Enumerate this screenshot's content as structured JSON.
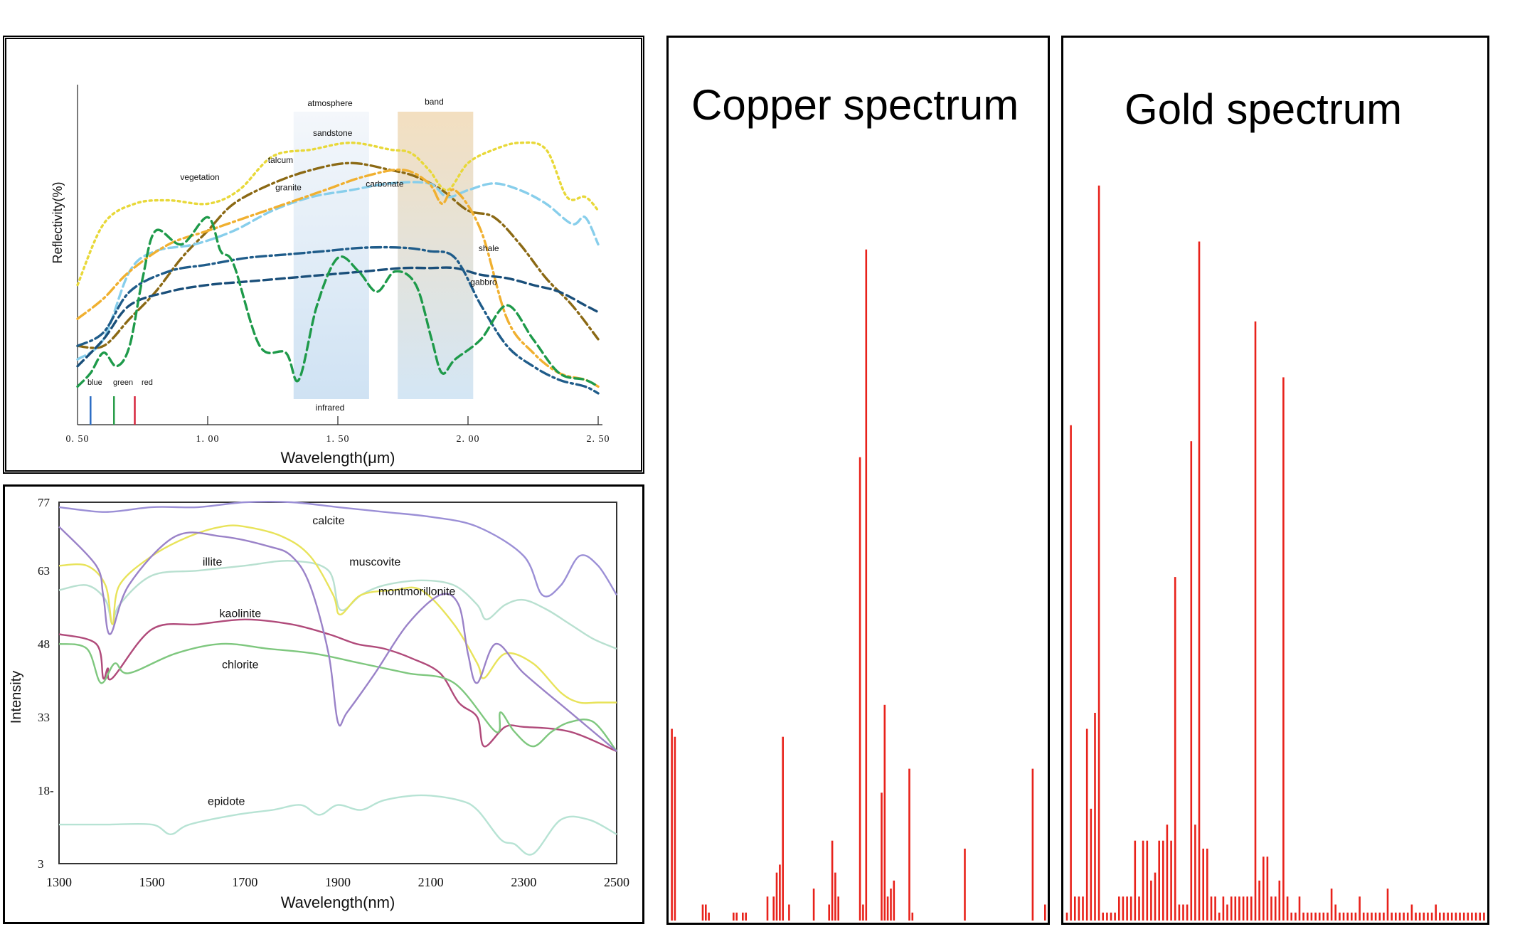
{
  "chart_data": [
    {
      "type": "line",
      "xlabel": "Wavelength(μm)",
      "ylabel": "Reflectivity(%)",
      "xlim": [
        0.5,
        2.5
      ],
      "xticks": [
        "0. 50",
        "1. 00",
        "1. 50",
        "2. 00",
        "2. 50"
      ],
      "shaded_bands": [
        {
          "label_top": "atmosphere",
          "label_bottom": "infrared",
          "x": [
            1.33,
            1.62
          ],
          "color": "#cfe2f3"
        },
        {
          "label_top": "band",
          "x": [
            1.73,
            2.02
          ],
          "color": "#f3dfc0"
        }
      ],
      "visible_markers": [
        {
          "label": "blue",
          "x": 0.55,
          "color": "#2b6cc4"
        },
        {
          "label": "green",
          "x": 0.64,
          "color": "#2a9d4a"
        },
        {
          "label": "red",
          "x": 0.72,
          "color": "#d7263d"
        }
      ],
      "series": [
        {
          "name": "sandstone",
          "color": "#e8d838",
          "style": "dotted",
          "x": [
            0.5,
            0.6,
            0.72,
            0.85,
            1.0,
            1.12,
            1.25,
            1.4,
            1.55,
            1.7,
            1.78,
            1.85,
            1.92,
            2.0,
            2.1,
            2.2,
            2.3,
            2.38,
            2.45,
            2.5
          ],
          "y": [
            40,
            58,
            64,
            65,
            64,
            68,
            78,
            80,
            82,
            80,
            79,
            74,
            68,
            76,
            80,
            82,
            80,
            66,
            66,
            62
          ]
        },
        {
          "name": "talcum",
          "color": "#8b6914",
          "style": "dashdot",
          "x": [
            0.5,
            0.6,
            0.7,
            0.8,
            0.9,
            1.0,
            1.1,
            1.25,
            1.4,
            1.55,
            1.7,
            1.8,
            1.9,
            2.0,
            2.1,
            2.2,
            2.3,
            2.4,
            2.5
          ],
          "y": [
            22,
            22,
            30,
            38,
            48,
            56,
            64,
            70,
            74,
            76,
            74,
            72,
            68,
            62,
            60,
            52,
            42,
            34,
            24
          ]
        },
        {
          "name": "granite",
          "color": "#87ceeb",
          "style": "dashed",
          "x": [
            0.5,
            0.6,
            0.7,
            0.8,
            0.95,
            1.1,
            1.25,
            1.4,
            1.55,
            1.7,
            1.85,
            1.92,
            2.0,
            2.1,
            2.2,
            2.3,
            2.4,
            2.45,
            2.5
          ],
          "y": [
            18,
            24,
            44,
            50,
            52,
            56,
            62,
            66,
            68,
            70,
            70,
            66,
            68,
            70,
            68,
            64,
            58,
            60,
            52
          ]
        },
        {
          "name": "carbonate",
          "color": "#f0b030",
          "style": "dashdot",
          "x": [
            0.5,
            0.6,
            0.7,
            0.85,
            1.0,
            1.15,
            1.3,
            1.45,
            1.6,
            1.75,
            1.85,
            1.9,
            1.95,
            2.05,
            2.15,
            2.25,
            2.35,
            2.45,
            2.5
          ],
          "y": [
            30,
            36,
            44,
            52,
            56,
            60,
            64,
            68,
            72,
            74,
            70,
            64,
            68,
            56,
            30,
            20,
            14,
            12,
            10
          ]
        },
        {
          "name": "shale",
          "color": "#1a4f7a",
          "style": "dashed",
          "x": [
            0.5,
            0.6,
            0.7,
            0.85,
            1.0,
            1.15,
            1.3,
            1.45,
            1.6,
            1.75,
            1.85,
            1.95,
            2.05,
            2.15,
            2.25,
            2.35,
            2.45,
            2.5
          ],
          "y": [
            16,
            24,
            34,
            38,
            40,
            41,
            42,
            43,
            44,
            45,
            45,
            45,
            43,
            42,
            40,
            38,
            34,
            32
          ]
        },
        {
          "name": "gabbro",
          "color": "#1f5c8a",
          "style": "dashdot",
          "x": [
            0.5,
            0.6,
            0.7,
            0.85,
            1.0,
            1.15,
            1.3,
            1.45,
            1.6,
            1.75,
            1.85,
            1.95,
            2.05,
            2.15,
            2.25,
            2.35,
            2.45,
            2.5
          ],
          "y": [
            22,
            26,
            38,
            44,
            46,
            48,
            49,
            50,
            51,
            51,
            50,
            48,
            34,
            22,
            16,
            12,
            10,
            8
          ]
        },
        {
          "name": "vegetation",
          "color": "#1e9a4a",
          "style": "dashed",
          "x": [
            0.5,
            0.55,
            0.6,
            0.65,
            0.7,
            0.75,
            0.8,
            0.9,
            1.0,
            1.05,
            1.1,
            1.2,
            1.3,
            1.35,
            1.42,
            1.5,
            1.58,
            1.65,
            1.72,
            1.8,
            1.86,
            1.9,
            1.95,
            2.05,
            2.15,
            2.25,
            2.35,
            2.45,
            2.5
          ],
          "y": [
            10,
            14,
            20,
            16,
            22,
            42,
            56,
            52,
            60,
            50,
            46,
            22,
            20,
            12,
            34,
            48,
            44,
            38,
            44,
            40,
            24,
            14,
            18,
            24,
            34,
            24,
            14,
            12,
            10
          ]
        }
      ]
    },
    {
      "type": "line",
      "xlabel": "Wavelength(nm)",
      "ylabel": "Intensity",
      "xlim": [
        1300,
        2500
      ],
      "ylim": [
        3,
        77
      ],
      "xticks": [
        "1300",
        "1500",
        "1700",
        "1900",
        "2100",
        "2300",
        "2500"
      ],
      "yticks": [
        "77",
        "63",
        "48",
        "33",
        "18-",
        "3"
      ],
      "series": [
        {
          "name": "calcite",
          "color": "#9b8fd6",
          "x": [
            1300,
            1400,
            1500,
            1600,
            1700,
            1800,
            1900,
            2000,
            2100,
            2200,
            2300,
            2340,
            2380,
            2420,
            2460,
            2500
          ],
          "y": [
            76,
            75,
            76,
            76,
            77,
            77,
            76,
            75,
            74,
            72,
            66,
            58,
            60,
            66,
            64,
            58
          ]
        },
        {
          "name": "illite",
          "color": "#b8e0d0",
          "x": [
            1300,
            1360,
            1400,
            1415,
            1430,
            1500,
            1600,
            1700,
            1800,
            1880,
            1905,
            1950,
            2000,
            2080,
            2150,
            2200,
            2220,
            2260,
            2300,
            2350,
            2400,
            2450,
            2500
          ],
          "y": [
            59,
            60,
            57,
            52,
            56,
            62,
            63,
            64,
            65,
            63,
            55,
            58,
            60,
            61,
            60,
            56,
            53,
            56,
            57,
            55,
            52,
            49,
            47
          ]
        },
        {
          "name": "muscovite",
          "color": "#e8e35a",
          "x": [
            1300,
            1360,
            1400,
            1415,
            1430,
            1500,
            1580,
            1650,
            1700,
            1780,
            1840,
            1890,
            1905,
            1950,
            2020,
            2080,
            2150,
            2200,
            2215,
            2260,
            2320,
            2380,
            2420,
            2460,
            2500
          ],
          "y": [
            64,
            64,
            60,
            52,
            60,
            66,
            70,
            72,
            72,
            70,
            66,
            58,
            54,
            58,
            59,
            59,
            52,
            44,
            41,
            46,
            44,
            38,
            36,
            36,
            36
          ]
        },
        {
          "name": "kaolinite",
          "color": "#b04a7a",
          "x": [
            1300,
            1380,
            1395,
            1405,
            1415,
            1500,
            1600,
            1700,
            1800,
            1880,
            1940,
            2000,
            2060,
            2120,
            2160,
            2200,
            2215,
            2260,
            2300,
            2400,
            2500
          ],
          "y": [
            50,
            48,
            41,
            43,
            41,
            51,
            52,
            53,
            52,
            50,
            48,
            47,
            45,
            42,
            36,
            33,
            27,
            31,
            31,
            30,
            26
          ]
        },
        {
          "name": "chlorite",
          "color": "#7ec77e",
          "x": [
            1300,
            1360,
            1390,
            1420,
            1450,
            1550,
            1650,
            1750,
            1850,
            1950,
            2050,
            2150,
            2240,
            2250,
            2280,
            2320,
            2360,
            2400,
            2450,
            2500
          ],
          "y": [
            48,
            47,
            40,
            44,
            42,
            46,
            48,
            47,
            46,
            44,
            42,
            40,
            30,
            34,
            30,
            27,
            30,
            32,
            32,
            26
          ]
        },
        {
          "name": "montmorillonite",
          "color": "#9a82c8",
          "x": [
            1300,
            1380,
            1395,
            1410,
            1450,
            1550,
            1650,
            1750,
            1800,
            1840,
            1880,
            1900,
            1920,
            1980,
            2050,
            2120,
            2160,
            2180,
            2200,
            2240,
            2300,
            2400,
            2500
          ],
          "y": [
            72,
            64,
            58,
            50,
            60,
            70,
            70,
            68,
            66,
            60,
            46,
            32,
            34,
            42,
            52,
            58,
            56,
            46,
            40,
            48,
            42,
            34,
            26
          ]
        },
        {
          "name": "epidote",
          "color": "#b7e3d4",
          "x": [
            1300,
            1400,
            1500,
            1540,
            1580,
            1680,
            1760,
            1820,
            1860,
            1900,
            1950,
            2000,
            2080,
            2160,
            2200,
            2250,
            2280,
            2320,
            2380,
            2440,
            2500
          ],
          "y": [
            11,
            11,
            11,
            9,
            11,
            13,
            14,
            15,
            13,
            15,
            14,
            16,
            17,
            16,
            14,
            8,
            7,
            5,
            12,
            12,
            9
          ]
        }
      ]
    },
    {
      "type": "bar",
      "title": "Copper spectrum",
      "color": "#e8221b",
      "values": [
        24,
        23,
        0,
        0,
        0,
        0,
        0,
        0,
        0,
        0,
        2,
        2,
        1,
        0,
        0,
        0,
        0,
        0,
        0,
        0,
        1,
        1,
        0,
        1,
        1,
        0,
        0,
        0,
        0,
        0,
        0,
        3,
        0,
        3,
        6,
        7,
        23,
        0,
        2,
        0,
        0,
        0,
        0,
        0,
        0,
        0,
        4,
        0,
        0,
        0,
        0,
        2,
        10,
        6,
        3,
        0,
        0,
        0,
        0,
        0,
        0,
        58,
        2,
        84,
        0,
        0,
        0,
        0,
        16,
        27,
        3,
        4,
        5,
        0,
        0,
        0,
        0,
        19,
        1,
        0,
        0,
        0,
        0,
        0,
        0,
        0,
        0,
        0,
        0,
        0,
        0,
        0,
        0,
        0,
        0,
        9,
        0,
        0,
        0,
        0,
        0,
        0,
        0,
        0,
        0,
        0,
        0,
        0,
        0,
        0,
        0,
        0,
        0,
        0,
        0,
        0,
        0,
        19,
        0,
        0,
        0,
        2
      ]
    },
    {
      "type": "bar",
      "title": "Gold spectrum",
      "color": "#e8221b",
      "values": [
        1,
        62,
        3,
        3,
        3,
        24,
        14,
        26,
        92,
        1,
        1,
        1,
        1,
        3,
        3,
        3,
        3,
        10,
        3,
        10,
        10,
        5,
        6,
        10,
        10,
        12,
        10,
        43,
        2,
        2,
        2,
        60,
        12,
        85,
        9,
        9,
        3,
        3,
        1,
        3,
        2,
        3,
        3,
        3,
        3,
        3,
        3,
        75,
        5,
        8,
        8,
        3,
        3,
        5,
        68,
        3,
        1,
        1,
        3,
        1,
        1,
        1,
        1,
        1,
        1,
        1,
        4,
        2,
        1,
        1,
        1,
        1,
        1,
        3,
        1,
        1,
        1,
        1,
        1,
        1,
        4,
        1,
        1,
        1,
        1,
        1,
        2,
        1,
        1,
        1,
        1,
        1,
        2,
        1,
        1,
        1,
        1,
        1,
        1,
        1,
        1,
        1,
        1,
        1,
        1
      ]
    }
  ],
  "labels": {
    "refl_series": [
      "atmosphere",
      "band",
      "sandstone",
      "talcum",
      "granite",
      "carbonate",
      "vegetation",
      "shale",
      "gabbro",
      "infrared"
    ],
    "markers": [
      "blue",
      "green",
      "red"
    ],
    "clay_series": [
      "calcite",
      "illite",
      "muscovite",
      "kaolinite",
      "montmorillonite",
      "chlorite",
      "epidote"
    ]
  }
}
